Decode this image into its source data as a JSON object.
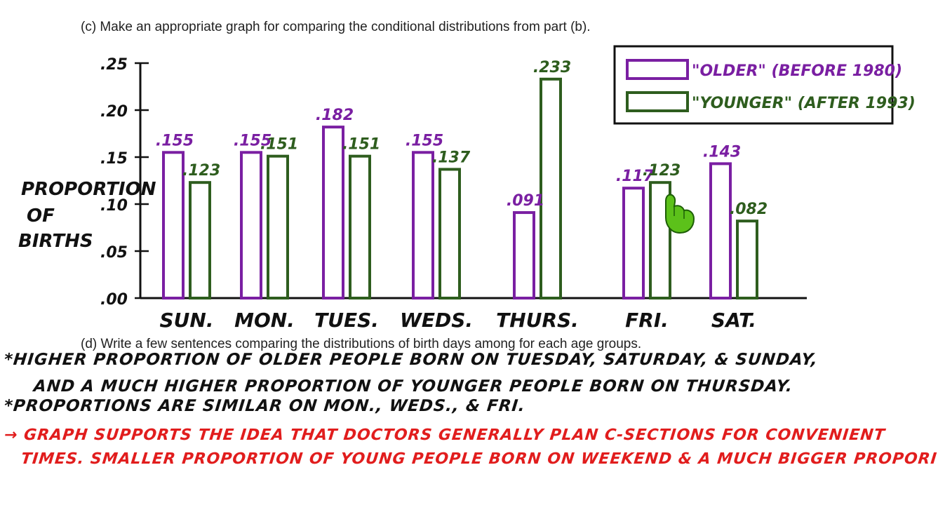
{
  "prompts": {
    "part_c": "(c)  Make an appropriate graph for comparing the conditional distributions from part (b).",
    "part_d": "(d)  Write a few sentences comparing the distributions of birth days among for each age groups."
  },
  "chart_data": {
    "type": "bar",
    "title": "",
    "ylabel": "Proportion of Births",
    "xlabel": "",
    "categories": [
      "Sun.",
      "Mon.",
      "Tues.",
      "Weds.",
      "Thurs.",
      "Fri.",
      "Sat."
    ],
    "series": [
      {
        "name": "\"OLDER\" (BEFORE 1980)",
        "values": [
          0.155,
          0.155,
          0.182,
          0.155,
          0.091,
          0.117,
          0.143
        ],
        "labels": [
          ".155",
          ".155",
          ".182",
          ".155",
          ".091",
          ".117",
          ".143"
        ]
      },
      {
        "name": "\"YOUNGER\" (AFTER 1993)",
        "values": [
          0.123,
          0.151,
          0.151,
          0.137,
          0.233,
          0.123,
          0.082
        ],
        "labels": [
          ".123",
          ".151",
          ".151",
          ".137",
          ".233",
          ".123",
          ".082"
        ]
      }
    ],
    "ylim": [
      0,
      0.25
    ],
    "yticks": [
      ".00",
      ".05",
      ".10",
      ".15",
      ".20",
      ".25"
    ],
    "grid": false,
    "legend_position": "top-right"
  },
  "colors": {
    "older": "#7a1fa2",
    "younger": "#2e5d1e",
    "axis": "#111111",
    "notes_black": "#111111",
    "notes_red": "#e11d1d"
  },
  "cursor_icon": "green-hand-pointer-icon",
  "notes": {
    "line1": "*HIGHER PROPORTION OF OLDER PEOPLE  BORN ON TUESDAY, SATURDAY, & SUNDAY,",
    "line2": "AND  A  MUCH HIGHER PROPORTION OF YOUNGER PEOPLE BORN ON THURSDAY.",
    "line3": "*PROPORTIONS ARE SIMILAR ON MON., WEDS., & FRI.",
    "line4": "→ GRAPH SUPPORTS THE IDEA THAT DOCTORS GENERALLY PLAN C-SECTIONS FOR CONVENIENT",
    "line5": "TIMES. SMALLER PROPORTION OF YOUNG PEOPLE BORN ON WEEKEND & A MUCH BIGGER PROPORI"
  }
}
